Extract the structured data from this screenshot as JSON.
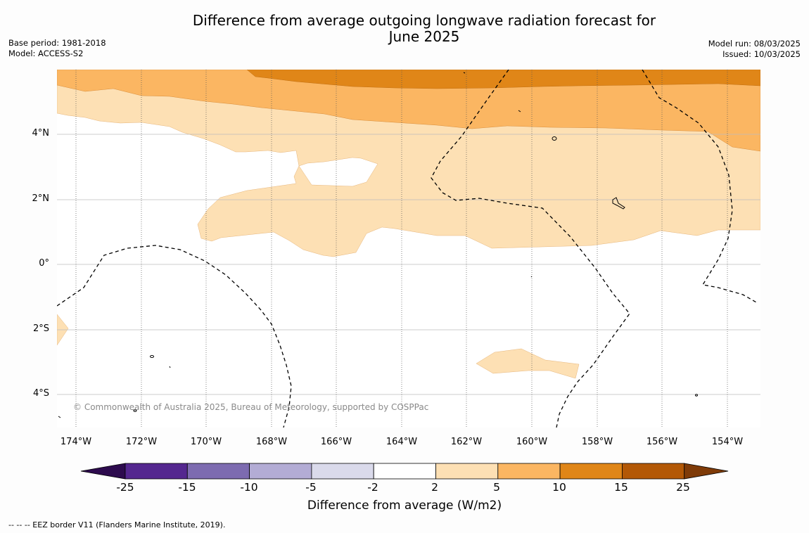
{
  "title_line1": "Difference from average outgoing longwave radiation forecast for",
  "title_line2": "June 2025",
  "meta_left": [
    "Base period: 1981-2018",
    "Model: ACCESS-S2"
  ],
  "meta_right": [
    "Model run: 08/03/2025",
    "Issued: 10/03/2025"
  ],
  "lat_labels": [
    "4°N",
    "2°N",
    "0°",
    "2°S",
    "4°S"
  ],
  "lon_labels": [
    "174°W",
    "172°W",
    "170°W",
    "168°W",
    "166°W",
    "164°W",
    "162°W",
    "160°W",
    "158°W",
    "156°W",
    "154°W"
  ],
  "copyright": "© Commonwealth of Australia 2025, Bureau of Meteorology, supported by COSPPac",
  "colorbar": {
    "title": "Difference from average (W/m2)",
    "ticks": [
      "-25",
      "-15",
      "-10",
      "-5",
      "-2",
      "2",
      "5",
      "10",
      "15",
      "25"
    ],
    "colors": [
      "#2d0b4e",
      "#54278f",
      "#7d6bb0",
      "#b3acd5",
      "#dadaeb",
      "#ffffff",
      "#fde0b4",
      "#fbb662",
      "#e08618",
      "#b35806",
      "#7f3b08"
    ]
  },
  "footnote": "--  --  -- EEZ border V11 (Flanders Marine Institute, 2019)."
}
